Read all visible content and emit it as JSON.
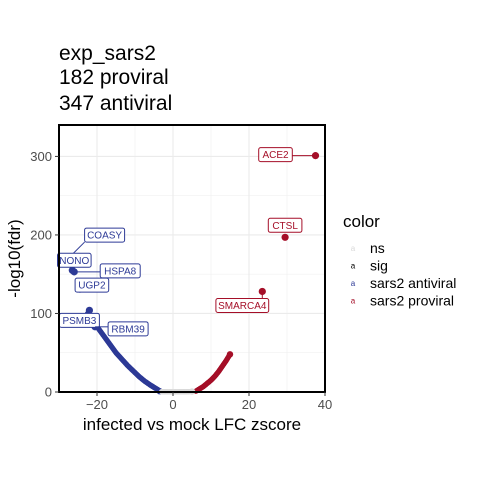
{
  "title_lines": [
    "exp_sars2",
    "182 proviral",
    "347 antiviral"
  ],
  "chart_data": {
    "type": "scatter",
    "title": "exp_sars2",
    "subtitle": [
      "182 proviral",
      "347 antiviral"
    ],
    "xlabel": "infected vs mock LFC zscore",
    "ylabel": "-log10(fdr)",
    "xlim": [
      -30,
      40
    ],
    "ylim": [
      0,
      340
    ],
    "x_ticks": [
      -20,
      0,
      20,
      40
    ],
    "x_tick_labels": [
      "−20",
      "0",
      "20",
      "40"
    ],
    "y_ticks": [
      0,
      100,
      200,
      300
    ],
    "y_tick_labels": [
      "0",
      "100",
      "200",
      "300"
    ],
    "grid": true,
    "legend_position": "right",
    "legend": {
      "title": "color",
      "entries": [
        {
          "label": "ns",
          "color": "#d9d9d9"
        },
        {
          "label": "sig",
          "color": "#000000"
        },
        {
          "label": "sars2 antiviral",
          "color": "#2d3a96"
        },
        {
          "label": "sars2 proviral",
          "color": "#a50f28"
        }
      ]
    },
    "labeled_points": [
      {
        "gene": "ACE2",
        "x": 37.5,
        "y": 301,
        "group": "sars2 proviral"
      },
      {
        "gene": "CTSL",
        "x": 29.5,
        "y": 197,
        "group": "sars2 proviral"
      },
      {
        "gene": "SMARCA4",
        "x": 23.5,
        "y": 128,
        "group": "sars2 proviral"
      },
      {
        "gene": "COASY",
        "x": -28,
        "y": 168,
        "group": "sars2 antiviral"
      },
      {
        "gene": "NONO",
        "x": -26.5,
        "y": 155,
        "group": "sars2 antiviral"
      },
      {
        "gene": "HSPA8",
        "x": -26,
        "y": 153,
        "group": "sars2 antiviral"
      },
      {
        "gene": "UGP2",
        "x": -24.5,
        "y": 131,
        "group": "sars2 antiviral"
      },
      {
        "gene": "PSMB3",
        "x": -22,
        "y": 104,
        "group": "sars2 antiviral"
      },
      {
        "gene": "RBM39",
        "x": -20.5,
        "y": 83,
        "group": "sars2 antiviral"
      }
    ],
    "series": [
      {
        "name": "sars2 antiviral",
        "points": [
          [
            -22.5,
            100
          ],
          [
            -21,
            90
          ],
          [
            -19.5,
            80
          ],
          [
            -18,
            70
          ],
          [
            -16.5,
            60
          ],
          [
            -15,
            50
          ],
          [
            -13.5,
            42
          ],
          [
            -12,
            34
          ],
          [
            -10.5,
            27
          ],
          [
            -9,
            20
          ],
          [
            -7.5,
            14
          ],
          [
            -6,
            9
          ],
          [
            -5,
            6
          ],
          [
            -4,
            3
          ],
          [
            -3.5,
            1
          ]
        ]
      },
      {
        "name": "sars2 proviral",
        "points": [
          [
            6,
            1
          ],
          [
            7,
            4
          ],
          [
            8,
            7
          ],
          [
            9,
            11
          ],
          [
            10,
            15
          ],
          [
            11,
            20
          ],
          [
            12,
            26
          ],
          [
            13,
            33
          ],
          [
            14,
            40
          ],
          [
            15,
            48
          ]
        ]
      },
      {
        "name": "ns",
        "points": [
          [
            -3,
            0.5
          ],
          [
            -2,
            0.3
          ],
          [
            -1,
            0.2
          ],
          [
            0,
            0.1
          ],
          [
            1,
            0.2
          ],
          [
            2,
            0.3
          ],
          [
            3,
            0.4
          ],
          [
            4,
            0.5
          ],
          [
            5,
            0.6
          ]
        ]
      }
    ]
  }
}
